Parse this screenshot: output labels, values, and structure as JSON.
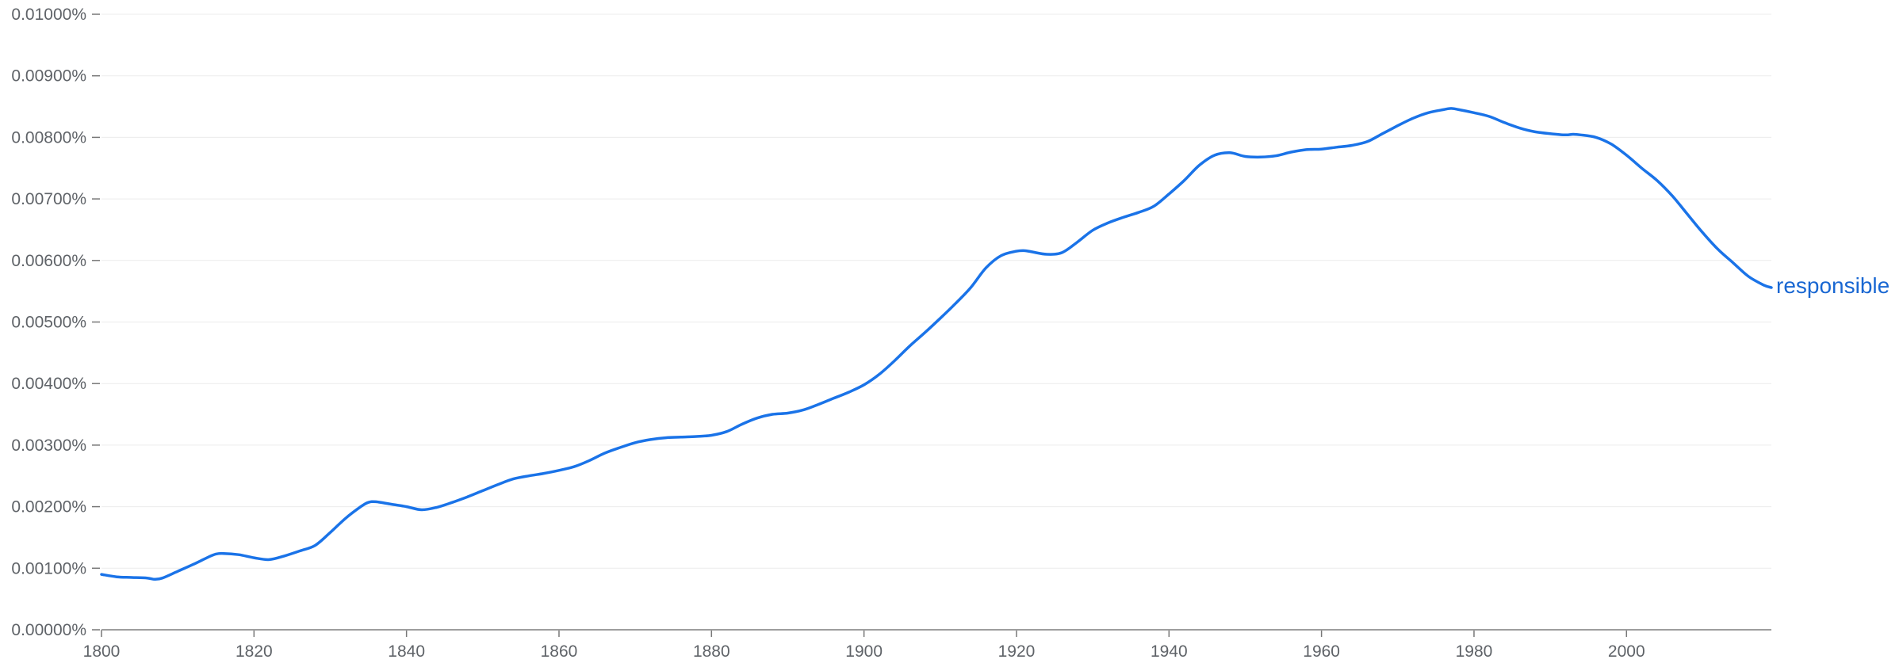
{
  "chart_data": {
    "type": "line",
    "title": "",
    "xlabel": "",
    "ylabel": "",
    "xlim": [
      1800,
      2019
    ],
    "ylim": [
      0,
      0.01
    ],
    "grid": true,
    "legend": "inline-end",
    "y_tick_values": [
      0,
      0.001,
      0.002,
      0.003,
      0.004,
      0.005,
      0.006,
      0.007,
      0.008,
      0.009,
      0.01
    ],
    "y_tick_labels": [
      "0.00000%",
      "0.00100%",
      "0.00200%",
      "0.00300%",
      "0.00400%",
      "0.00500%",
      "0.00600%",
      "0.00700%",
      "0.00800%",
      "0.00900%",
      "0.01000%"
    ],
    "x_tick_values": [
      1800,
      1820,
      1840,
      1860,
      1880,
      1900,
      1920,
      1940,
      1960,
      1980,
      2000
    ],
    "x_tick_labels": [
      "1800",
      "1820",
      "1840",
      "1860",
      "1880",
      "1900",
      "1920",
      "1940",
      "1960",
      "1980",
      "2000"
    ],
    "colors": {
      "series": "#1a73e8",
      "label": "#1967d2"
    },
    "series": [
      {
        "name": "responsible",
        "x": [
          1800,
          1802,
          1804,
          1806,
          1807,
          1808,
          1810,
          1812,
          1814,
          1815,
          1816,
          1818,
          1820,
          1822,
          1824,
          1826,
          1828,
          1830,
          1832,
          1834,
          1835,
          1836,
          1838,
          1840,
          1842,
          1844,
          1846,
          1848,
          1850,
          1852,
          1854,
          1856,
          1858,
          1860,
          1862,
          1864,
          1866,
          1868,
          1870,
          1872,
          1874,
          1876,
          1878,
          1880,
          1882,
          1884,
          1886,
          1888,
          1890,
          1892,
          1894,
          1896,
          1898,
          1900,
          1902,
          1904,
          1906,
          1908,
          1910,
          1912,
          1914,
          1916,
          1918,
          1920,
          1921,
          1922,
          1924,
          1926,
          1928,
          1930,
          1932,
          1934,
          1936,
          1938,
          1940,
          1942,
          1944,
          1946,
          1948,
          1950,
          1952,
          1954,
          1956,
          1958,
          1960,
          1962,
          1964,
          1966,
          1968,
          1970,
          1972,
          1974,
          1976,
          1977,
          1978,
          1980,
          1982,
          1984,
          1986,
          1988,
          1990,
          1992,
          1993,
          1994,
          1996,
          1998,
          2000,
          2002,
          2004,
          2006,
          2008,
          2010,
          2012,
          2014,
          2016,
          2018,
          2019
        ],
        "values": [
          0.0009,
          0.00086,
          0.00085,
          0.00084,
          0.00082,
          0.00084,
          0.00095,
          0.00106,
          0.00118,
          0.00123,
          0.00124,
          0.00122,
          0.00117,
          0.00114,
          0.0012,
          0.00128,
          0.00137,
          0.00158,
          0.00181,
          0.002,
          0.00207,
          0.00208,
          0.00204,
          0.002,
          0.00195,
          0.00199,
          0.00207,
          0.00216,
          0.00226,
          0.00236,
          0.00245,
          0.0025,
          0.00254,
          0.00259,
          0.00265,
          0.00275,
          0.00287,
          0.00296,
          0.00304,
          0.00309,
          0.00312,
          0.00313,
          0.00314,
          0.00316,
          0.00322,
          0.00334,
          0.00344,
          0.0035,
          0.00352,
          0.00357,
          0.00366,
          0.00376,
          0.00386,
          0.00398,
          0.00415,
          0.00437,
          0.00461,
          0.00483,
          0.00506,
          0.0053,
          0.00556,
          0.00588,
          0.00608,
          0.00615,
          0.00616,
          0.00614,
          0.0061,
          0.00613,
          0.0063,
          0.00649,
          0.00661,
          0.0067,
          0.00678,
          0.00688,
          0.00708,
          0.0073,
          0.00755,
          0.00771,
          0.00775,
          0.00769,
          0.00768,
          0.0077,
          0.00776,
          0.0078,
          0.00781,
          0.00784,
          0.00787,
          0.00793,
          0.00806,
          0.00819,
          0.00831,
          0.0084,
          0.00845,
          0.00847,
          0.00845,
          0.0084,
          0.00834,
          0.00824,
          0.00815,
          0.00809,
          0.00806,
          0.00804,
          0.00805,
          0.00804,
          0.008,
          0.00789,
          0.00771,
          0.0075,
          0.0073,
          0.00705,
          0.00675,
          0.00645,
          0.00618,
          0.00596,
          0.00574,
          0.0056,
          0.00556
        ]
      }
    ]
  }
}
